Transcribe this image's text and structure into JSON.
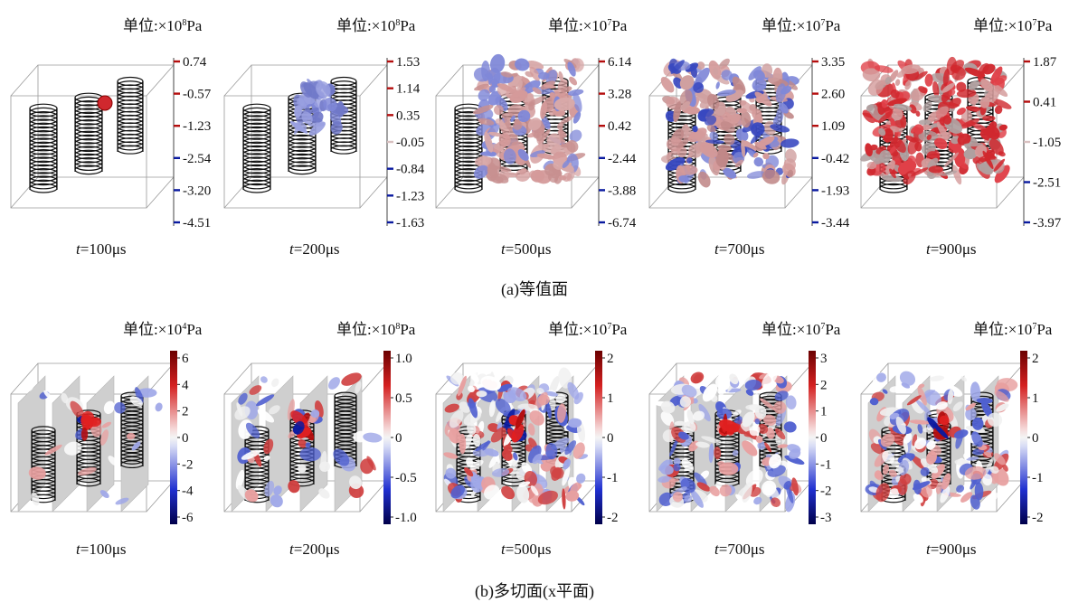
{
  "row_a": {
    "caption": "(a)等值面",
    "panels": [
      {
        "unit_prefix": "单位:×10",
        "unit_exp": "8",
        "unit_suffix": "Pa",
        "time_var": "t",
        "time_text": "=100μs",
        "ticks": [
          "0.74",
          "-0.57",
          "-1.23",
          "-2.54",
          "-3.20",
          "-4.51"
        ],
        "level": 0.05
      },
      {
        "unit_prefix": "单位:×10",
        "unit_exp": "8",
        "unit_suffix": "Pa",
        "time_var": "t",
        "time_text": "=200μs",
        "ticks": [
          "1.53",
          "1.14",
          "0.35",
          "-0.05",
          "-0.84",
          "-1.23",
          "-1.63"
        ],
        "level": 0.35
      },
      {
        "unit_prefix": "单位:×10",
        "unit_exp": "7",
        "unit_suffix": "Pa",
        "time_var": "t",
        "time_text": "=500μs",
        "ticks": [
          "6.14",
          "3.28",
          "0.42",
          "-2.44",
          "-3.88",
          "-6.74"
        ],
        "level": 0.65
      },
      {
        "unit_prefix": "单位:×10",
        "unit_exp": "7",
        "unit_suffix": "Pa",
        "time_var": "t",
        "time_text": "=700μs",
        "ticks": [
          "3.35",
          "2.60",
          "1.09",
          "-0.42",
          "-1.93",
          "-3.44"
        ],
        "level": 0.8
      },
      {
        "unit_prefix": "单位:×10",
        "unit_exp": "7",
        "unit_suffix": "Pa",
        "time_var": "t",
        "time_text": "=900μs",
        "ticks": [
          "1.87",
          "0.41",
          "-1.05",
          "-2.51",
          "-3.97"
        ],
        "level": 0.95
      }
    ]
  },
  "row_b": {
    "caption": "(b)多切面(x平面)",
    "panels": [
      {
        "unit_prefix": "单位:×10",
        "unit_exp": "4",
        "unit_suffix": "Pa",
        "time_var": "t",
        "time_text": "=100μs",
        "ticks": [
          "6",
          "4",
          "2",
          "0",
          "-2",
          "-4",
          "-6"
        ],
        "level": 0.1
      },
      {
        "unit_prefix": "单位:×10",
        "unit_exp": "8",
        "unit_suffix": "Pa",
        "time_var": "t",
        "time_text": "=200μs",
        "ticks": [
          "1.0",
          "0.5",
          "0",
          "-0.5",
          "-1.0"
        ],
        "level": 0.2
      },
      {
        "unit_prefix": "单位:×10",
        "unit_exp": "7",
        "unit_suffix": "Pa",
        "time_var": "t",
        "time_text": "=500μs",
        "ticks": [
          "2",
          "1",
          "0",
          "-1",
          "-2"
        ],
        "level": 0.7
      },
      {
        "unit_prefix": "单位:×10",
        "unit_exp": "7",
        "unit_suffix": "Pa",
        "time_var": "t",
        "time_text": "=700μs",
        "ticks": [
          "3",
          "2",
          "1",
          "0",
          "-1",
          "-2",
          "-3"
        ],
        "level": 0.6
      },
      {
        "unit_prefix": "单位:×10",
        "unit_exp": "7",
        "unit_suffix": "Pa",
        "time_var": "t",
        "time_text": "=900μs",
        "ticks": [
          "2",
          "1",
          "0",
          "-1",
          "-2"
        ],
        "level": 0.65
      }
    ]
  },
  "colors": {
    "positive": "#b40d0d",
    "negative": "#0a1aa0",
    "neutral": "#e8e8e8",
    "iso_pink": "#d49a9a",
    "iso_red": "#d0282e",
    "iso_blue": "#8088d8"
  }
}
